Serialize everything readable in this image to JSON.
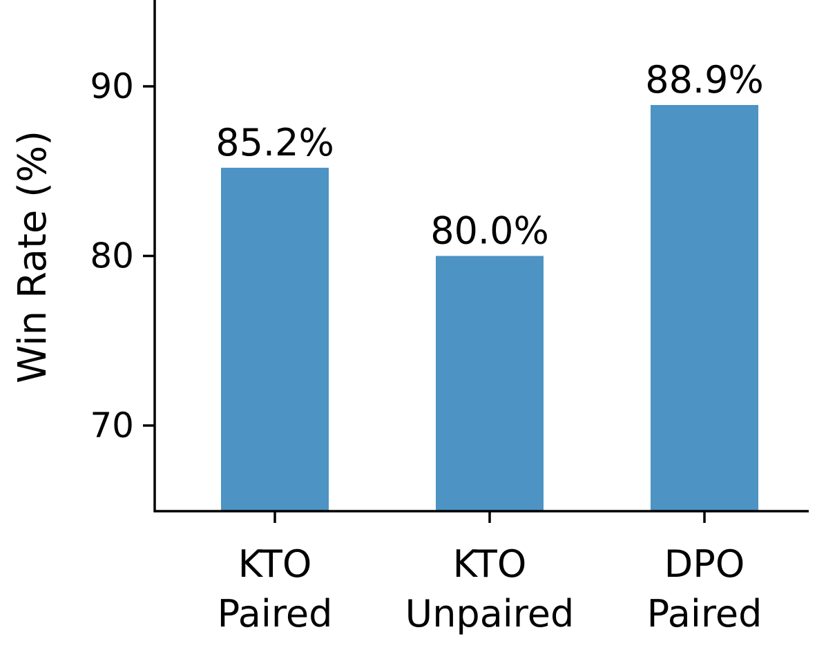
{
  "chart_data": {
    "type": "bar",
    "categories": [
      "KTO\nPaired",
      "KTO\nUnpaired",
      "DPO\nPaired"
    ],
    "values": [
      85.2,
      80.0,
      88.9
    ],
    "data_labels": [
      "85.2%",
      "80.0%",
      "88.9%"
    ],
    "title": "",
    "xlabel": "",
    "ylabel": "Win Rate (%)",
    "ylim": [
      65,
      95
    ],
    "yticks": [
      70,
      80,
      90
    ],
    "ytick_labels": [
      "70",
      "80",
      "90"
    ],
    "grid": false,
    "legend": "none",
    "bar_color": "#4d93c3",
    "axis_color": "#000000"
  }
}
